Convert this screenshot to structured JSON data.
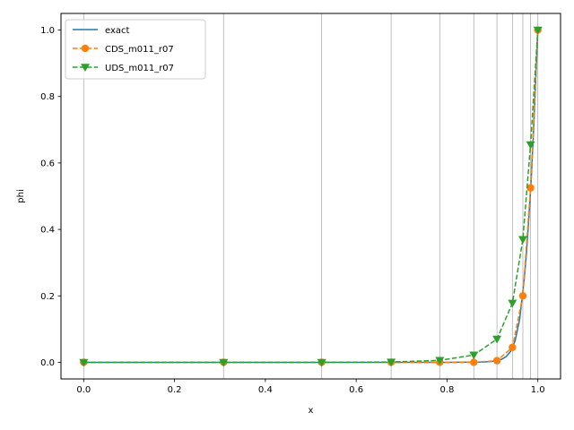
{
  "chart_data": {
    "type": "line",
    "title": "",
    "xlabel": "x",
    "ylabel": "phi",
    "xlim": [
      -0.05,
      1.05
    ],
    "ylim": [
      -0.05,
      1.05
    ],
    "xticks": [
      0.0,
      0.2,
      0.4,
      0.6,
      0.8,
      1.0
    ],
    "xtick_labels": [
      "0.0",
      "0.2",
      "0.4",
      "0.6",
      "0.8",
      "1.0"
    ],
    "yticks": [
      0.0,
      0.2,
      0.4,
      0.6,
      0.8,
      1.0
    ],
    "ytick_labels": [
      "0.0",
      "0.2",
      "0.4",
      "0.6",
      "0.8",
      "1.0"
    ],
    "vertical_grid_x": [
      0.0,
      0.308,
      0.524,
      0.677,
      0.784,
      0.859,
      0.91,
      0.944,
      0.967,
      0.984,
      1.0
    ],
    "legend_position": "top-left",
    "series": [
      {
        "name": "exact",
        "color": "#1f77b4",
        "style": "solid",
        "marker": "none",
        "x": [
          0.0,
          0.3,
          0.5,
          0.7,
          0.8,
          0.85,
          0.88,
          0.9,
          0.92,
          0.93,
          0.94,
          0.95,
          0.96,
          0.97,
          0.975,
          0.98,
          0.985,
          0.99,
          0.995,
          1.0
        ],
        "y": [
          0.0,
          0.0,
          0.0,
          0.0,
          0.0,
          0.0005,
          0.001,
          0.003,
          0.009,
          0.017,
          0.033,
          0.065,
          0.13,
          0.25,
          0.33,
          0.43,
          0.54,
          0.68,
          0.84,
          1.0
        ]
      },
      {
        "name": "CDS_m011_r07",
        "color": "#ff7f0e",
        "style": "dashed",
        "marker": "circle",
        "x": [
          0.0,
          0.308,
          0.524,
          0.677,
          0.784,
          0.859,
          0.91,
          0.944,
          0.967,
          0.984,
          1.0
        ],
        "y": [
          0.0,
          0.0,
          0.0,
          0.0,
          0.0,
          0.0,
          0.005,
          0.045,
          0.2,
          0.525,
          1.0
        ]
      },
      {
        "name": "UDS_m011_r07",
        "color": "#2ca02c",
        "style": "dashed",
        "marker": "triangle-down",
        "x": [
          0.0,
          0.308,
          0.524,
          0.677,
          0.784,
          0.859,
          0.91,
          0.944,
          0.967,
          0.984,
          1.0
        ],
        "y": [
          0.0,
          0.0,
          0.0,
          0.001,
          0.006,
          0.022,
          0.07,
          0.178,
          0.37,
          0.655,
          1.0
        ]
      }
    ]
  }
}
